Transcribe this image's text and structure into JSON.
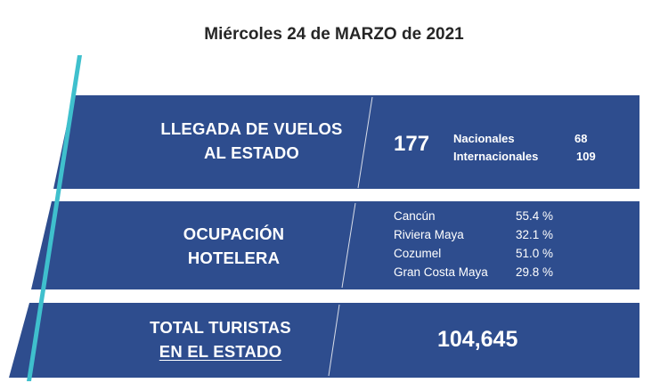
{
  "header": {
    "date": "Miércoles 24 de MARZO de 2021"
  },
  "colors": {
    "panel": "#2e4d8e",
    "accent_line": "#3fc0cd",
    "text": "#ffffff",
    "title": "#262626"
  },
  "vuelos": {
    "label_line1": "LLEGADA DE VUELOS",
    "label_line2": "AL ESTADO",
    "total": "177",
    "nacionales_label": "Nacionales",
    "nacionales_value": "68",
    "internacionales_label": "Internacionales",
    "internacionales_value": "109"
  },
  "ocupacion": {
    "label_line1": "OCUPACIÓN",
    "label_line2": "HOTELERA",
    "items": [
      {
        "name": "Cancún",
        "value": "55.4 %"
      },
      {
        "name": "Riviera Maya",
        "value": "32.1 %"
      },
      {
        "name": "Cozumel",
        "value": "51.0 %"
      },
      {
        "name": "Gran Costa Maya",
        "value": "29.8 %"
      }
    ]
  },
  "turistas": {
    "label_line1": "TOTAL TURISTAS",
    "label_line2": "EN EL ESTADO",
    "total": "104,645"
  }
}
